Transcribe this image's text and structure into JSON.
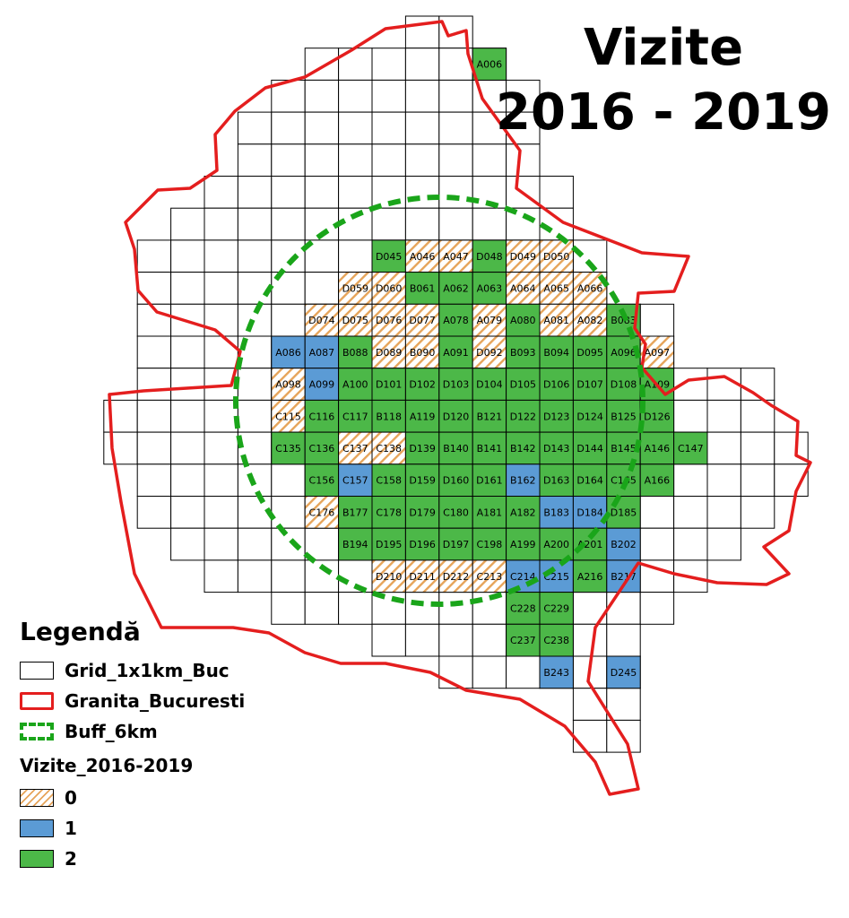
{
  "title": {
    "line1": "Vizite",
    "line2": "2016 - 2019"
  },
  "legend": {
    "heading": "Legendă",
    "grid_label": "Grid_1x1km_Buc",
    "boundary_label": "Granita_Bucuresti",
    "buffer_label": "Buff_6km",
    "visits_heading": "Vizite_2016-2019",
    "class_0": "0",
    "class_1": "1",
    "class_2": "2"
  },
  "colors": {
    "class_0_hatch": "#e6a45a",
    "class_1": "#5b9bd5",
    "class_2": "#4cb848",
    "boundary": "#e41e1e",
    "buffer": "#1aa51a",
    "grid": "#000000"
  },
  "map_grid": {
    "blank_rows": [
      [
        3,
        4
      ],
      [
        3,
        6
      ],
      [
        2,
        7
      ],
      [
        2,
        8
      ],
      [
        2,
        10
      ],
      [
        1,
        10
      ],
      [
        1,
        11
      ],
      [
        1,
        12
      ],
      [
        2,
        12
      ],
      [
        2,
        13
      ],
      [
        2,
        14
      ],
      [
        2,
        15
      ],
      [
        2,
        16
      ],
      [
        2,
        17
      ],
      [
        2,
        18
      ],
      [
        3,
        18
      ],
      [
        3,
        19
      ],
      [
        3,
        20
      ],
      [
        3,
        22
      ]
    ],
    "labeled_cells": [
      {
        "row": 1,
        "col": 13,
        "label": "A006",
        "visits": 2
      },
      {
        "row": 7,
        "col": 10,
        "label": "D045",
        "visits": 2
      },
      {
        "row": 7,
        "col": 11,
        "label": "A046",
        "visits": 0
      },
      {
        "row": 7,
        "col": 12,
        "label": "A047",
        "visits": 0
      },
      {
        "row": 7,
        "col": 13,
        "label": "D048",
        "visits": 2
      },
      {
        "row": 7,
        "col": 14,
        "label": "D049",
        "visits": 0
      },
      {
        "row": 7,
        "col": 15,
        "label": "D050",
        "visits": 0
      },
      {
        "row": 8,
        "col": 9,
        "label": "D059",
        "visits": 0
      },
      {
        "row": 8,
        "col": 10,
        "label": "D060",
        "visits": 0
      },
      {
        "row": 8,
        "col": 11,
        "label": "B061",
        "visits": 2
      },
      {
        "row": 8,
        "col": 12,
        "label": "A062",
        "visits": 2
      },
      {
        "row": 8,
        "col": 13,
        "label": "A063",
        "visits": 2
      },
      {
        "row": 8,
        "col": 14,
        "label": "A064",
        "visits": 0
      },
      {
        "row": 8,
        "col": 15,
        "label": "A065",
        "visits": 0
      },
      {
        "row": 8,
        "col": 16,
        "label": "A066",
        "visits": 0
      },
      {
        "row": 9,
        "col": 8,
        "label": "D074",
        "visits": 0
      },
      {
        "row": 9,
        "col": 9,
        "label": "D075",
        "visits": 0
      },
      {
        "row": 9,
        "col": 10,
        "label": "D076",
        "visits": 0
      },
      {
        "row": 9,
        "col": 11,
        "label": "D077",
        "visits": 0
      },
      {
        "row": 9,
        "col": 12,
        "label": "A078",
        "visits": 2
      },
      {
        "row": 9,
        "col": 13,
        "label": "A079",
        "visits": 0
      },
      {
        "row": 9,
        "col": 14,
        "label": "A080",
        "visits": 2
      },
      {
        "row": 9,
        "col": 15,
        "label": "A081",
        "visits": 0
      },
      {
        "row": 9,
        "col": 16,
        "label": "A082",
        "visits": 0
      },
      {
        "row": 9,
        "col": 17,
        "label": "B083",
        "visits": 2
      },
      {
        "row": 10,
        "col": 7,
        "label": "A086",
        "visits": 1
      },
      {
        "row": 10,
        "col": 8,
        "label": "A087",
        "visits": 1
      },
      {
        "row": 10,
        "col": 9,
        "label": "B088",
        "visits": 2
      },
      {
        "row": 10,
        "col": 10,
        "label": "D089",
        "visits": 0
      },
      {
        "row": 10,
        "col": 11,
        "label": "B090",
        "visits": 0
      },
      {
        "row": 10,
        "col": 12,
        "label": "A091",
        "visits": 2
      },
      {
        "row": 10,
        "col": 13,
        "label": "D092",
        "visits": 0
      },
      {
        "row": 10,
        "col": 14,
        "label": "B093",
        "visits": 2
      },
      {
        "row": 10,
        "col": 15,
        "label": "B094",
        "visits": 2
      },
      {
        "row": 10,
        "col": 16,
        "label": "D095",
        "visits": 2
      },
      {
        "row": 10,
        "col": 17,
        "label": "A096",
        "visits": 2
      },
      {
        "row": 10,
        "col": 18,
        "label": "A097",
        "visits": 0
      },
      {
        "row": 11,
        "col": 7,
        "label": "A098",
        "visits": 0
      },
      {
        "row": 11,
        "col": 8,
        "label": "A099",
        "visits": 1
      },
      {
        "row": 11,
        "col": 9,
        "label": "A100",
        "visits": 2
      },
      {
        "row": 11,
        "col": 10,
        "label": "D101",
        "visits": 2
      },
      {
        "row": 11,
        "col": 11,
        "label": "D102",
        "visits": 2
      },
      {
        "row": 11,
        "col": 12,
        "label": "D103",
        "visits": 2
      },
      {
        "row": 11,
        "col": 13,
        "label": "D104",
        "visits": 2
      },
      {
        "row": 11,
        "col": 14,
        "label": "D105",
        "visits": 2
      },
      {
        "row": 11,
        "col": 15,
        "label": "D106",
        "visits": 2
      },
      {
        "row": 11,
        "col": 16,
        "label": "D107",
        "visits": 2
      },
      {
        "row": 11,
        "col": 17,
        "label": "D108",
        "visits": 2
      },
      {
        "row": 11,
        "col": 18,
        "label": "A109",
        "visits": 2
      },
      {
        "row": 12,
        "col": 7,
        "label": "C115",
        "visits": 0
      },
      {
        "row": 12,
        "col": 8,
        "label": "C116",
        "visits": 2
      },
      {
        "row": 12,
        "col": 9,
        "label": "C117",
        "visits": 2
      },
      {
        "row": 12,
        "col": 10,
        "label": "B118",
        "visits": 2
      },
      {
        "row": 12,
        "col": 11,
        "label": "A119",
        "visits": 2
      },
      {
        "row": 12,
        "col": 12,
        "label": "D120",
        "visits": 2
      },
      {
        "row": 12,
        "col": 13,
        "label": "B121",
        "visits": 2
      },
      {
        "row": 12,
        "col": 14,
        "label": "D122",
        "visits": 2
      },
      {
        "row": 12,
        "col": 15,
        "label": "D123",
        "visits": 2
      },
      {
        "row": 12,
        "col": 16,
        "label": "D124",
        "visits": 2
      },
      {
        "row": 12,
        "col": 17,
        "label": "B125",
        "visits": 2
      },
      {
        "row": 12,
        "col": 18,
        "label": "D126",
        "visits": 2
      },
      {
        "row": 13,
        "col": 7,
        "label": "C135",
        "visits": 2
      },
      {
        "row": 13,
        "col": 8,
        "label": "C136",
        "visits": 2
      },
      {
        "row": 13,
        "col": 9,
        "label": "C137",
        "visits": 0
      },
      {
        "row": 13,
        "col": 10,
        "label": "C138",
        "visits": 0
      },
      {
        "row": 13,
        "col": 11,
        "label": "D139",
        "visits": 2
      },
      {
        "row": 13,
        "col": 12,
        "label": "B140",
        "visits": 2
      },
      {
        "row": 13,
        "col": 13,
        "label": "B141",
        "visits": 2
      },
      {
        "row": 13,
        "col": 14,
        "label": "B142",
        "visits": 2
      },
      {
        "row": 13,
        "col": 15,
        "label": "D143",
        "visits": 2
      },
      {
        "row": 13,
        "col": 16,
        "label": "D144",
        "visits": 2
      },
      {
        "row": 13,
        "col": 17,
        "label": "B145",
        "visits": 2
      },
      {
        "row": 13,
        "col": 18,
        "label": "A146",
        "visits": 2
      },
      {
        "row": 13,
        "col": 19,
        "label": "C147",
        "visits": 2
      },
      {
        "row": 14,
        "col": 8,
        "label": "C156",
        "visits": 2
      },
      {
        "row": 14,
        "col": 9,
        "label": "C157",
        "visits": 1
      },
      {
        "row": 14,
        "col": 10,
        "label": "C158",
        "visits": 2
      },
      {
        "row": 14,
        "col": 11,
        "label": "D159",
        "visits": 2
      },
      {
        "row": 14,
        "col": 12,
        "label": "D160",
        "visits": 2
      },
      {
        "row": 14,
        "col": 13,
        "label": "D161",
        "visits": 2
      },
      {
        "row": 14,
        "col": 14,
        "label": "B162",
        "visits": 1
      },
      {
        "row": 14,
        "col": 15,
        "label": "D163",
        "visits": 2
      },
      {
        "row": 14,
        "col": 16,
        "label": "D164",
        "visits": 2
      },
      {
        "row": 14,
        "col": 17,
        "label": "C165",
        "visits": 2
      },
      {
        "row": 14,
        "col": 18,
        "label": "A166",
        "visits": 2
      },
      {
        "row": 15,
        "col": 8,
        "label": "C176",
        "visits": 0
      },
      {
        "row": 15,
        "col": 9,
        "label": "B177",
        "visits": 2
      },
      {
        "row": 15,
        "col": 10,
        "label": "C178",
        "visits": 2
      },
      {
        "row": 15,
        "col": 11,
        "label": "D179",
        "visits": 2
      },
      {
        "row": 15,
        "col": 12,
        "label": "C180",
        "visits": 2
      },
      {
        "row": 15,
        "col": 13,
        "label": "A181",
        "visits": 2
      },
      {
        "row": 15,
        "col": 14,
        "label": "A182",
        "visits": 2
      },
      {
        "row": 15,
        "col": 15,
        "label": "B183",
        "visits": 1
      },
      {
        "row": 15,
        "col": 16,
        "label": "D184",
        "visits": 1
      },
      {
        "row": 15,
        "col": 17,
        "label": "D185",
        "visits": 2
      },
      {
        "row": 16,
        "col": 9,
        "label": "B194",
        "visits": 2
      },
      {
        "row": 16,
        "col": 10,
        "label": "D195",
        "visits": 2
      },
      {
        "row": 16,
        "col": 11,
        "label": "D196",
        "visits": 2
      },
      {
        "row": 16,
        "col": 12,
        "label": "D197",
        "visits": 2
      },
      {
        "row": 16,
        "col": 13,
        "label": "C198",
        "visits": 2
      },
      {
        "row": 16,
        "col": 14,
        "label": "A199",
        "visits": 2
      },
      {
        "row": 16,
        "col": 15,
        "label": "A200",
        "visits": 2
      },
      {
        "row": 16,
        "col": 16,
        "label": "A201",
        "visits": 2
      },
      {
        "row": 16,
        "col": 17,
        "label": "B202",
        "visits": 1
      },
      {
        "row": 17,
        "col": 10,
        "label": "D210",
        "visits": 0
      },
      {
        "row": 17,
        "col": 11,
        "label": "D211",
        "visits": 0
      },
      {
        "row": 17,
        "col": 12,
        "label": "D212",
        "visits": 0
      },
      {
        "row": 17,
        "col": 13,
        "label": "C213",
        "visits": 0
      },
      {
        "row": 17,
        "col": 14,
        "label": "C214",
        "visits": 1
      },
      {
        "row": 17,
        "col": 15,
        "label": "C215",
        "visits": 1
      },
      {
        "row": 17,
        "col": 16,
        "label": "A216",
        "visits": 2
      },
      {
        "row": 17,
        "col": 17,
        "label": "B217",
        "visits": 1
      },
      {
        "row": 18,
        "col": 14,
        "label": "C228",
        "visits": 2
      },
      {
        "row": 18,
        "col": 15,
        "label": "C229",
        "visits": 2
      },
      {
        "row": 19,
        "col": 14,
        "label": "C237",
        "visits": 2
      },
      {
        "row": 19,
        "col": 15,
        "label": "C238",
        "visits": 2
      },
      {
        "row": 20,
        "col": 15,
        "label": "B243",
        "visits": 1
      },
      {
        "row": 20,
        "col": 17,
        "label": "D245",
        "visits": 1
      }
    ]
  }
}
